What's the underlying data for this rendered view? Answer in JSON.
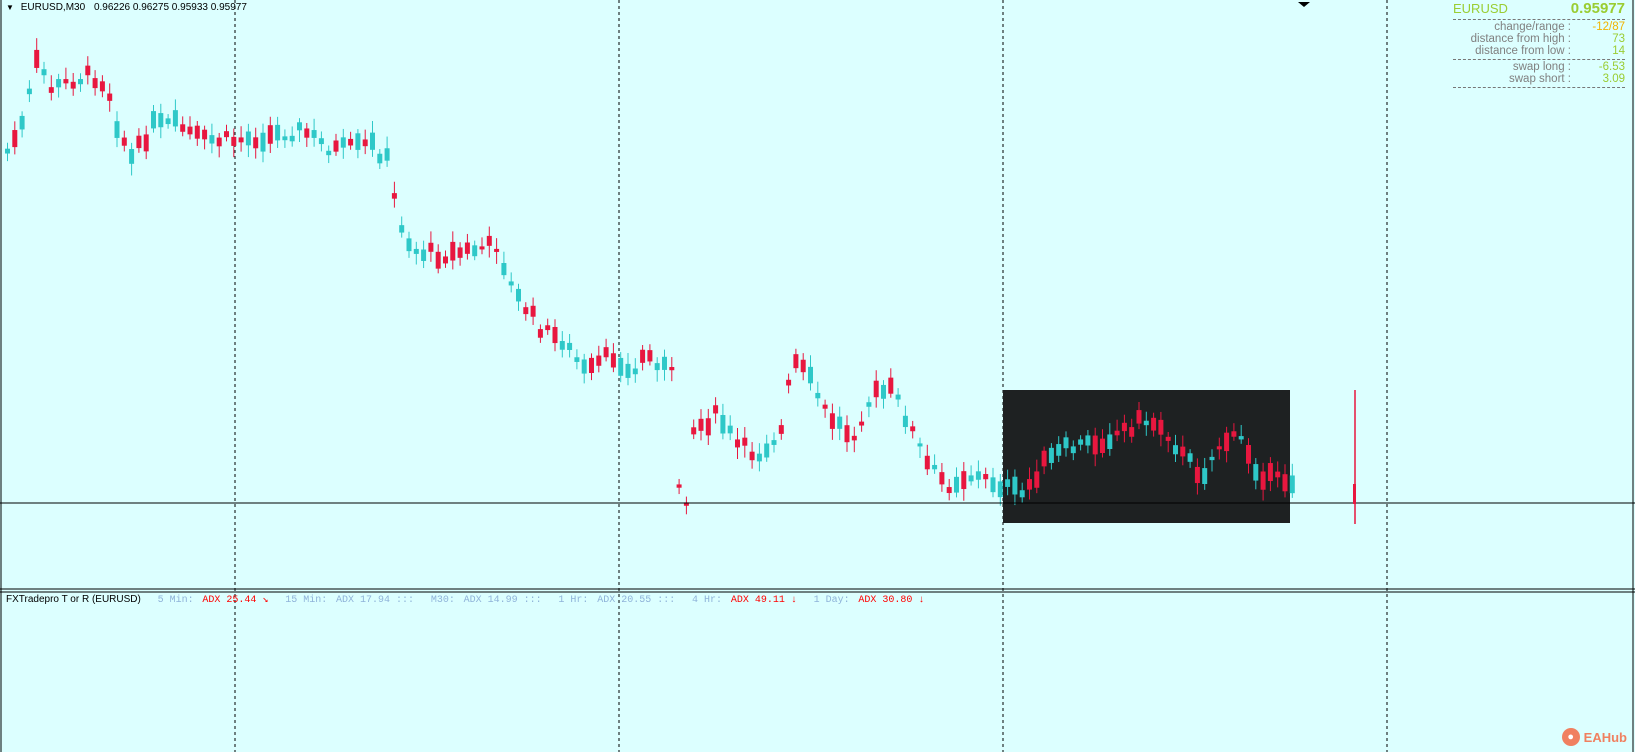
{
  "chart": {
    "symbol_timeframe": "EURUSD,M30",
    "ohlc_text": "0.96226 0.96275 0.95933 0.95977",
    "colors": {
      "bull": "#2ec8c8",
      "bear": "#e8173f",
      "background": "#dcffff",
      "box": "#1e2122"
    }
  },
  "info_panel": {
    "symbol": "EURUSD",
    "price": "0.95977",
    "rows": [
      {
        "label": "change/range :",
        "value": "-12/87",
        "color": "#f0b400"
      },
      {
        "label": "distance from high :",
        "value": "73",
        "color": "#9acd32"
      },
      {
        "label": "distance from low :",
        "value": "14",
        "color": "#9acd32"
      },
      {
        "label": "swap long :",
        "value": "-6.53",
        "color": "#9acd32"
      },
      {
        "label": "swap short :",
        "value": "3.09",
        "color": "#9acd32"
      }
    ]
  },
  "indicator": {
    "name": "FXTradepro T or R (EURUSD)",
    "items": [
      {
        "tf": "5 Min:",
        "adx": "ADX 25.44 ↘",
        "color": "red"
      },
      {
        "tf": "15 Min:",
        "adx": "ADX 17.94 :::",
        "color": "blue"
      },
      {
        "tf": "M30:",
        "adx": "ADX 14.99 :::",
        "color": "blue"
      },
      {
        "tf": "1 Hr:",
        "adx": "ADX 20.55 :::",
        "color": "blue"
      },
      {
        "tf": "4 Hr:",
        "adx": "ADX 49.11 ↓",
        "color": "red"
      },
      {
        "tf": "1 Day:",
        "adx": "ADX 30.80 ↓",
        "color": "red"
      }
    ]
  },
  "watermark": {
    "text": "EAHub",
    "icon": "eahub-logo-icon"
  }
}
